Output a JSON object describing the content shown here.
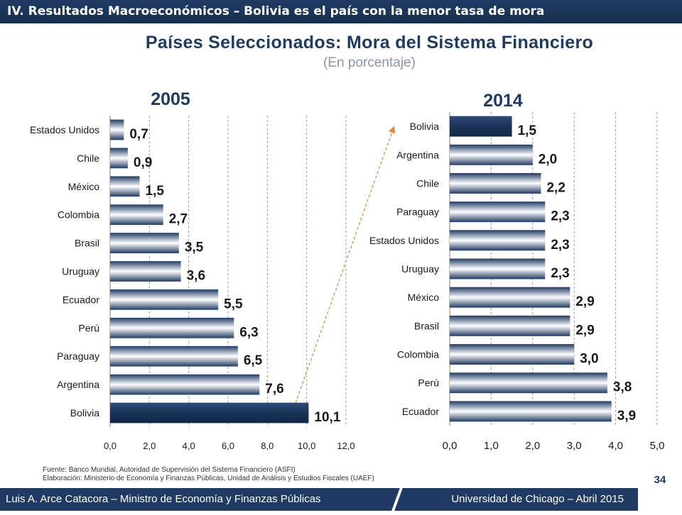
{
  "header": {
    "title": "IV. Resultados Macroeconómicos – Bolivia es el país con la menor tasa de mora"
  },
  "main": {
    "title": "Países Seleccionados: Mora del Sistema Financiero",
    "subtitle": "(En porcentaje)"
  },
  "colors": {
    "bar_highlight": "#1f3b63",
    "bar_default_gradient": [
      "#1f3b63",
      "#ffffff",
      "#1f3b63"
    ],
    "arrow": "#e8823a",
    "header_bg": "#1f3b63"
  },
  "chart_data": [
    {
      "type": "bar",
      "orientation": "horizontal",
      "title": "2005",
      "categories": [
        "Estados Unidos",
        "Chile",
        "México",
        "Colombia",
        "Brasil",
        "Uruguay",
        "Ecuador",
        "Perú",
        "Paraguay",
        "Argentina",
        "Bolivia"
      ],
      "values": [
        0.7,
        0.9,
        1.5,
        2.7,
        3.5,
        3.6,
        5.5,
        6.3,
        6.5,
        7.6,
        10.1
      ],
      "value_labels": [
        "0,7",
        "0,9",
        "1,5",
        "2,7",
        "3,5",
        "3,6",
        "5,5",
        "6,3",
        "6,5",
        "7,6",
        "10,1"
      ],
      "highlight": "Bolivia",
      "xlim": [
        0,
        12
      ],
      "xticks": [
        "0,0",
        "2,0",
        "4,0",
        "6,0",
        "8,0",
        "10,0",
        "12,0"
      ],
      "grid": "vertical dashed"
    },
    {
      "type": "bar",
      "orientation": "horizontal",
      "title": "2014",
      "categories": [
        "Bolivia",
        "Argentina",
        "Chile",
        "Paraguay",
        "Estados Unidos",
        "Uruguay",
        "México",
        "Brasil",
        "Colombia",
        "Perú",
        "Ecuador"
      ],
      "values": [
        1.5,
        2.0,
        2.2,
        2.3,
        2.3,
        2.3,
        2.9,
        2.9,
        3.0,
        3.8,
        3.9
      ],
      "value_labels": [
        "1,5",
        "2,0",
        "2,2",
        "2,3",
        "2,3",
        "2,3",
        "2,9",
        "2,9",
        "3,0",
        "3,8",
        "3,9"
      ],
      "highlight": "Bolivia",
      "xlim": [
        0,
        5
      ],
      "xticks": [
        "0,0",
        "1,0",
        "2,0",
        "3,0",
        "4,0",
        "5,0"
      ],
      "grid": "vertical dashed"
    }
  ],
  "notes": {
    "source": "Fuente: Banco Mundial, Autoridad de Supervisión del Sistema Financiero (ASFI)",
    "elaboration": "Elaboración: Ministerio de Economía y Finanzas Públicas, Unidad de Análisis y Estudios Fiscales (UAEF)"
  },
  "footer": {
    "left": "Luis A. Arce Catacora – Ministro de Economía y Finanzas Públicas",
    "right": "Universidad de Chicago – Abril 2015",
    "page": "34"
  }
}
